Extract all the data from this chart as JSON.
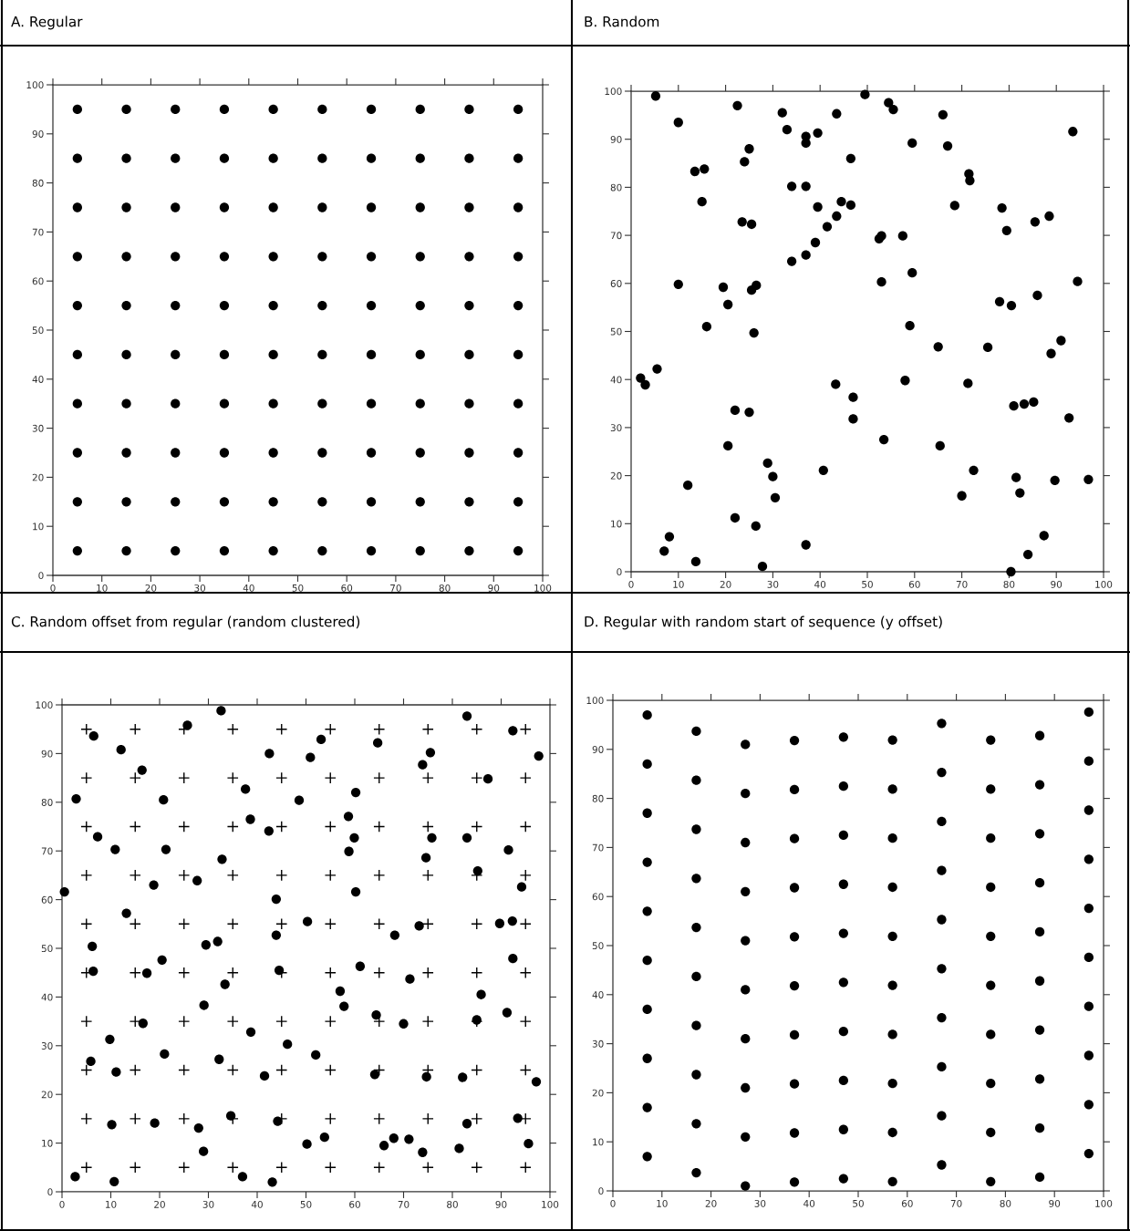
{
  "chart_data": [
    {
      "type": "scatter",
      "title": "A. Regular",
      "xlim": [
        0,
        100
      ],
      "ylim": [
        0,
        100
      ],
      "xticks": [
        0,
        10,
        20,
        30,
        40,
        50,
        60,
        70,
        80,
        90,
        100
      ],
      "yticks": [
        0,
        10,
        20,
        30,
        40,
        50,
        60,
        70,
        80,
        90,
        100
      ],
      "series": [
        {
          "color": "#000000",
          "marker": "circle",
          "x": [
            5,
            5,
            5,
            5,
            5,
            5,
            5,
            5,
            5,
            5,
            15,
            15,
            15,
            15,
            15,
            15,
            15,
            15,
            15,
            15,
            25,
            25,
            25,
            25,
            25,
            25,
            25,
            25,
            25,
            25,
            35,
            35,
            35,
            35,
            35,
            35,
            35,
            35,
            35,
            35,
            45,
            45,
            45,
            45,
            45,
            45,
            45,
            45,
            45,
            45,
            55,
            55,
            55,
            55,
            55,
            55,
            55,
            55,
            55,
            55,
            65,
            65,
            65,
            65,
            65,
            65,
            65,
            65,
            65,
            65,
            75,
            75,
            75,
            75,
            75,
            75,
            75,
            75,
            75,
            75,
            85,
            85,
            85,
            85,
            85,
            85,
            85,
            85,
            85,
            85,
            95,
            95,
            95,
            95,
            95,
            95,
            95,
            95,
            95,
            95
          ],
          "values": [
            5,
            15,
            25,
            35,
            45,
            55,
            65,
            75,
            85,
            95,
            5,
            15,
            25,
            35,
            45,
            55,
            65,
            75,
            85,
            95,
            5,
            15,
            25,
            35,
            45,
            55,
            65,
            75,
            85,
            95,
            5,
            15,
            25,
            35,
            45,
            55,
            65,
            75,
            85,
            95,
            5,
            15,
            25,
            35,
            45,
            55,
            65,
            75,
            85,
            95,
            5,
            15,
            25,
            35,
            45,
            55,
            65,
            75,
            85,
            95,
            5,
            15,
            25,
            35,
            45,
            55,
            65,
            75,
            85,
            95,
            5,
            15,
            25,
            35,
            45,
            55,
            65,
            75,
            85,
            95,
            5,
            15,
            25,
            35,
            45,
            55,
            65,
            75,
            85,
            95,
            5,
            15,
            25,
            35,
            45,
            55,
            65,
            75,
            85,
            95
          ]
        }
      ]
    },
    {
      "type": "scatter",
      "title": "B. Random",
      "xlim": [
        0,
        100
      ],
      "ylim": [
        0,
        100
      ],
      "xticks": [
        0,
        10,
        20,
        30,
        40,
        50,
        60,
        70,
        80,
        90,
        100
      ],
      "yticks": [
        0,
        10,
        20,
        30,
        40,
        50,
        60,
        70,
        80,
        90,
        100
      ],
      "series": [
        {
          "color": "#000000",
          "marker": "circle",
          "x": [
            5.2,
            10,
            13.5,
            15.5,
            15,
            22.5,
            24,
            25,
            23.5,
            25.5,
            32,
            33,
            37,
            37,
            39.5,
            43.5,
            49.5,
            54.5,
            55.5,
            66,
            67,
            59.5,
            46.5,
            37,
            34,
            71.5,
            71.7,
            93.5,
            39.5,
            44.5,
            46.5,
            43.5,
            41.5,
            39,
            37,
            34,
            52.5,
            53,
            57.5,
            68.5,
            78.5,
            79.5,
            85.5,
            88.5,
            53,
            59.5,
            10,
            19.5,
            20.5,
            26.5,
            25.5,
            26,
            16,
            59,
            65,
            75.5,
            78,
            80.5,
            86,
            94.5,
            88.9,
            91,
            2,
            3,
            5.5,
            22,
            25,
            43.3,
            47,
            47,
            58,
            71.3,
            81,
            83.2,
            85.2,
            92.7,
            20.5,
            28.9,
            30,
            30.5,
            12,
            40.7,
            53.5,
            65.4,
            72.5,
            81.5,
            82.3,
            70,
            89.7,
            96.8,
            22,
            26.4,
            7,
            8.1,
            13.7,
            27.8,
            37,
            80.4,
            84,
            87.4
          ],
          "values": [
            99,
            93.5,
            83.3,
            83.8,
            77,
            97,
            85.3,
            88,
            72.8,
            72.3,
            95.5,
            92,
            90.6,
            89.2,
            91.3,
            95.3,
            99.3,
            97.6,
            96.2,
            95.1,
            88.6,
            89.2,
            86,
            80.2,
            80.2,
            82.8,
            81.4,
            91.6,
            75.9,
            77,
            76.3,
            74,
            71.8,
            68.5,
            65.9,
            64.6,
            69.3,
            69.9,
            69.9,
            76.2,
            75.7,
            71,
            72.8,
            74,
            60.3,
            62.2,
            59.8,
            59.2,
            55.6,
            59.6,
            58.6,
            49.7,
            51,
            51.2,
            46.8,
            46.7,
            56.2,
            55.4,
            57.5,
            60.4,
            45.4,
            48.1,
            40.3,
            38.9,
            42.2,
            33.6,
            33.2,
            39,
            36.3,
            31.8,
            39.8,
            39.2,
            34.5,
            34.9,
            35.3,
            32,
            26.2,
            22.6,
            19.8,
            15.4,
            18,
            21.1,
            27.5,
            26.2,
            21.1,
            19.6,
            16.4,
            15.8,
            19,
            19.2,
            11.2,
            9.5,
            4.3,
            7.3,
            2.1,
            1.1,
            5.6,
            0,
            3.6,
            7.5
          ]
        }
      ]
    },
    {
      "type": "scatter",
      "title": "C. Random offset from regular (random clustered)",
      "xlim": [
        0,
        100
      ],
      "ylim": [
        0,
        100
      ],
      "xticks": [
        0,
        10,
        20,
        30,
        40,
        50,
        60,
        70,
        80,
        90,
        100
      ],
      "yticks": [
        0,
        10,
        20,
        30,
        40,
        50,
        60,
        70,
        80,
        90,
        100
      ],
      "series": [
        {
          "color": "#000000",
          "marker": "cross",
          "x": [
            5,
            5,
            5,
            5,
            5,
            5,
            5,
            5,
            5,
            5,
            15,
            15,
            15,
            15,
            15,
            15,
            15,
            15,
            15,
            15,
            25,
            25,
            25,
            25,
            25,
            25,
            25,
            25,
            25,
            25,
            35,
            35,
            35,
            35,
            35,
            35,
            35,
            35,
            35,
            35,
            45,
            45,
            45,
            45,
            45,
            45,
            45,
            45,
            45,
            45,
            55,
            55,
            55,
            55,
            55,
            55,
            55,
            55,
            55,
            55,
            65,
            65,
            65,
            65,
            65,
            65,
            65,
            65,
            65,
            65,
            75,
            75,
            75,
            75,
            75,
            75,
            75,
            75,
            75,
            75,
            85,
            85,
            85,
            85,
            85,
            85,
            85,
            85,
            85,
            85,
            95,
            95,
            95,
            95,
            95,
            95,
            95,
            95,
            95,
            95
          ],
          "values": [
            5,
            15,
            25,
            35,
            45,
            55,
            65,
            75,
            85,
            95,
            5,
            15,
            25,
            35,
            45,
            55,
            65,
            75,
            85,
            95,
            5,
            15,
            25,
            35,
            45,
            55,
            65,
            75,
            85,
            95,
            5,
            15,
            25,
            35,
            45,
            55,
            65,
            75,
            85,
            95,
            5,
            15,
            25,
            35,
            45,
            55,
            65,
            75,
            85,
            95,
            5,
            15,
            25,
            35,
            45,
            55,
            65,
            75,
            85,
            95,
            5,
            15,
            25,
            35,
            45,
            55,
            65,
            75,
            85,
            95,
            5,
            15,
            25,
            35,
            45,
            55,
            65,
            75,
            85,
            95,
            5,
            15,
            25,
            35,
            45,
            55,
            65,
            75,
            85,
            95,
            5,
            15,
            25,
            35,
            45,
            55,
            65,
            75,
            85,
            95
          ]
        },
        {
          "color": "#000000",
          "marker": "circle",
          "x": [
            6.5,
            12.1,
            25.7,
            32.6,
            16.4,
            2.9,
            20.8,
            7.3,
            10.9,
            21.3,
            0.5,
            18.8,
            27.7,
            32.8,
            13.2,
            6.2,
            29.5,
            31.9,
            37.6,
            38.6,
            42.5,
            42.4,
            43.9,
            43.9,
            50.3,
            50.9,
            53.1,
            48.6,
            58.7,
            60.2,
            59.9,
            58.8,
            60.2,
            64.7,
            68.2,
            73.2,
            73.9,
            75.5,
            75.8,
            74.6,
            83,
            83,
            85.2,
            87.3,
            92.4,
            97.7,
            91.5,
            94.2,
            89.7,
            92.3,
            20.5,
            6.4,
            17.4,
            44.5,
            61.1,
            71.3,
            92.4,
            33.4,
            29.1,
            57,
            57.8,
            85.9,
            16.6,
            64.4,
            70,
            85,
            91.2,
            9.8,
            5.9,
            11.1,
            21,
            32.2,
            38.7,
            41.5,
            46.2,
            52,
            64.1,
            74.7,
            82.1,
            97.2,
            10.2,
            19,
            28,
            29,
            34.6,
            44.2,
            50.2,
            53.8,
            66,
            68,
            71.1,
            73.9,
            81.4,
            83,
            93.4,
            95.6,
            2.7,
            10.7,
            37,
            43.1
          ],
          "values": [
            93.6,
            90.8,
            95.8,
            98.8,
            86.6,
            80.7,
            80.5,
            72.9,
            70.3,
            70.3,
            61.6,
            63,
            63.9,
            68.3,
            57.2,
            50.4,
            50.7,
            51.4,
            82.7,
            76.5,
            90,
            74.1,
            60.1,
            52.7,
            55.5,
            89.2,
            92.9,
            80.4,
            77.1,
            82,
            72.7,
            69.9,
            61.6,
            92.2,
            52.7,
            54.6,
            87.7,
            90.2,
            72.7,
            68.6,
            97.7,
            72.7,
            65.9,
            84.8,
            94.7,
            89.5,
            70.2,
            62.6,
            55.1,
            55.6,
            47.6,
            45.3,
            44.9,
            45.5,
            46.3,
            43.7,
            47.9,
            42.6,
            38.3,
            41.2,
            38.1,
            40.5,
            34.6,
            36.3,
            34.5,
            35.3,
            36.8,
            31.3,
            26.8,
            24.6,
            28.3,
            27.2,
            32.8,
            23.8,
            30.3,
            28.1,
            24.1,
            23.6,
            23.5,
            22.6,
            13.8,
            14.1,
            13.1,
            8.3,
            15.6,
            14.5,
            9.8,
            11.2,
            9.5,
            11,
            10.8,
            8.1,
            8.9,
            14,
            15.1,
            9.9,
            3.1,
            2.1,
            3.1,
            2
          ]
        }
      ]
    },
    {
      "type": "scatter",
      "title": "D. Regular with random start of sequence (y offset)",
      "xlim": [
        0,
        100
      ],
      "ylim": [
        0,
        100
      ],
      "xticks": [
        0,
        10,
        20,
        30,
        40,
        50,
        60,
        70,
        80,
        90,
        100
      ],
      "yticks": [
        0,
        10,
        20,
        30,
        40,
        50,
        60,
        70,
        80,
        90,
        100
      ],
      "series": [
        {
          "color": "#000000",
          "marker": "circle",
          "x": [
            7,
            7,
            7,
            7,
            7,
            7,
            7,
            7,
            7,
            7,
            17,
            17,
            17,
            17,
            17,
            17,
            17,
            17,
            17,
            17,
            27,
            27,
            27,
            27,
            27,
            27,
            27,
            27,
            27,
            27,
            37,
            37,
            37,
            37,
            37,
            37,
            37,
            37,
            37,
            37,
            47,
            47,
            47,
            47,
            47,
            47,
            47,
            47,
            47,
            47,
            57,
            57,
            57,
            57,
            57,
            57,
            57,
            57,
            57,
            57,
            67,
            67,
            67,
            67,
            67,
            67,
            67,
            67,
            67,
            67,
            77,
            77,
            77,
            77,
            77,
            77,
            77,
            77,
            77,
            77,
            87,
            87,
            87,
            87,
            87,
            87,
            87,
            87,
            87,
            87,
            97,
            97,
            97,
            97,
            97,
            97,
            97,
            97,
            97,
            97
          ],
          "values": [
            7,
            17,
            27,
            37,
            47,
            57,
            67,
            77,
            87,
            97,
            3.7,
            13.7,
            23.7,
            33.7,
            43.7,
            53.7,
            63.7,
            73.7,
            83.7,
            93.7,
            1,
            11,
            21,
            31,
            41,
            51,
            61,
            71,
            81,
            91,
            1.8,
            11.8,
            21.8,
            31.8,
            41.8,
            51.8,
            61.8,
            71.8,
            81.8,
            91.8,
            2.5,
            12.5,
            22.5,
            32.5,
            42.5,
            52.5,
            62.5,
            72.5,
            82.5,
            92.5,
            1.9,
            11.9,
            21.9,
            31.9,
            41.9,
            51.9,
            61.9,
            71.9,
            81.9,
            91.9,
            5.3,
            15.3,
            25.3,
            35.3,
            45.3,
            55.3,
            65.3,
            75.3,
            85.3,
            95.3,
            1.9,
            11.9,
            21.9,
            31.9,
            41.9,
            51.9,
            61.9,
            71.9,
            81.9,
            91.9,
            2.8,
            12.8,
            22.8,
            32.8,
            42.8,
            52.8,
            62.8,
            72.8,
            82.8,
            92.8,
            7.6,
            17.6,
            27.6,
            37.6,
            47.6,
            57.6,
            67.6,
            77.6,
            87.6,
            97.6
          ]
        }
      ]
    }
  ]
}
